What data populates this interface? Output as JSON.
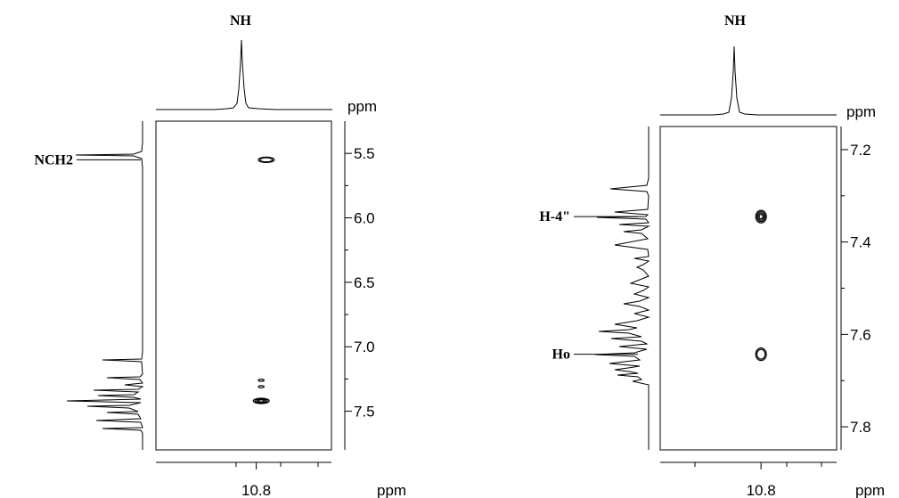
{
  "chart_data": [
    {
      "type": "scatter",
      "title": "",
      "top_label": "NH",
      "top_axis_unit": "ppm",
      "right_axis_unit": "ppm",
      "bottom_axis_unit": "ppm",
      "xlim": [
        11.0,
        10.65
      ],
      "ylim": [
        5.25,
        7.8
      ],
      "xticks": [
        10.8
      ],
      "yticks": [
        5.5,
        6.0,
        6.5,
        7.0,
        7.5
      ],
      "side_labels": [
        {
          "text": "NCH2",
          "ppm": 5.55
        }
      ],
      "cross_peaks": [
        {
          "x": 10.78,
          "y": 5.55,
          "intensity": "medium"
        },
        {
          "x": 10.79,
          "y": 7.26,
          "intensity": "weak"
        },
        {
          "x": 10.79,
          "y": 7.31,
          "intensity": "weak"
        },
        {
          "x": 10.79,
          "y": 7.42,
          "intensity": "strong"
        }
      ]
    },
    {
      "type": "scatter",
      "title": "",
      "top_label": "NH",
      "top_axis_unit": "ppm",
      "right_axis_unit": "ppm",
      "bottom_axis_unit": "ppm",
      "xlim": [
        11.0,
        10.65
      ],
      "ylim": [
        7.15,
        7.85
      ],
      "xticks": [
        10.8
      ],
      "yticks": [
        7.2,
        7.4,
        7.6,
        7.8
      ],
      "side_labels": [
        {
          "text": "H-4\"",
          "ppm": 7.345
        },
        {
          "text": "Ho",
          "ppm": 7.643
        }
      ],
      "cross_peaks": [
        {
          "x": 10.8,
          "y": 7.345,
          "intensity": "strong"
        },
        {
          "x": 10.8,
          "y": 7.643,
          "intensity": "medium"
        }
      ]
    }
  ],
  "colors": {
    "line": "#000000",
    "background": "#ffffff"
  }
}
